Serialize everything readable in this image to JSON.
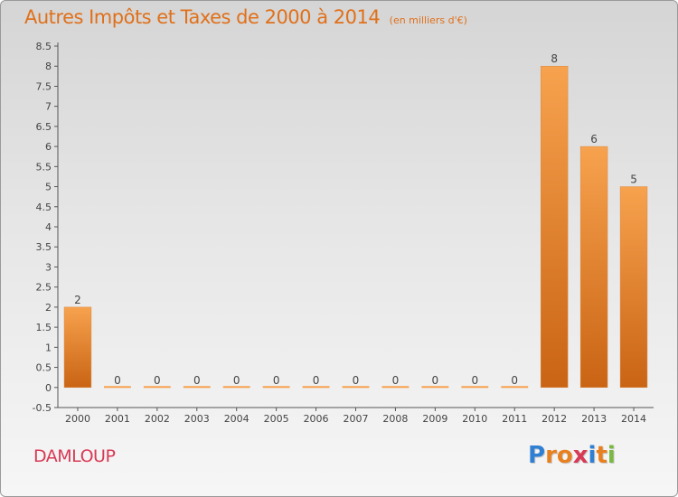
{
  "title": "Autres Impôts et Taxes de 2000 à 2014",
  "unit_note": "(en milliers d'€)",
  "commune": "DAMLOUP",
  "logo": {
    "letters": [
      "P",
      "r",
      "o",
      "x",
      "i",
      "t",
      "i"
    ],
    "colors": [
      "#2f7fd2",
      "#e9801f",
      "#e9801f",
      "#d83a55",
      "#2f7fd2",
      "#e9801f",
      "#7ab842"
    ]
  },
  "colors": {
    "bar_light": "#f7a24e",
    "bar_dark": "#c96414",
    "axis": "#555555",
    "grid_tick": "#555555",
    "title": "#e0701a",
    "commune": "#d83a55"
  },
  "chart_data": {
    "type": "bar",
    "title": "Autres Impôts et Taxes de 2000 à 2014",
    "categories": [
      "2000",
      "2001",
      "2002",
      "2003",
      "2004",
      "2005",
      "2006",
      "2007",
      "2008",
      "2009",
      "2010",
      "2011",
      "2012",
      "2013",
      "2014"
    ],
    "values": [
      2,
      0,
      0,
      0,
      0,
      0,
      0,
      0,
      0,
      0,
      0,
      0,
      8,
      6,
      5
    ],
    "value_labels": [
      "2",
      "0",
      "0",
      "0",
      "0",
      "0",
      "0",
      "0",
      "0",
      "0",
      "0",
      "0",
      "8",
      "6",
      "5"
    ],
    "ylim": [
      -0.5,
      8.5
    ],
    "yticks": [
      "-0.5",
      "0",
      "0.5",
      "1",
      "1.5",
      "2",
      "2.5",
      "3",
      "3.5",
      "4",
      "4.5",
      "5",
      "5.5",
      "6",
      "6.5",
      "7",
      "7.5",
      "8",
      "8.5"
    ],
    "grid": false,
    "legend": "none"
  }
}
